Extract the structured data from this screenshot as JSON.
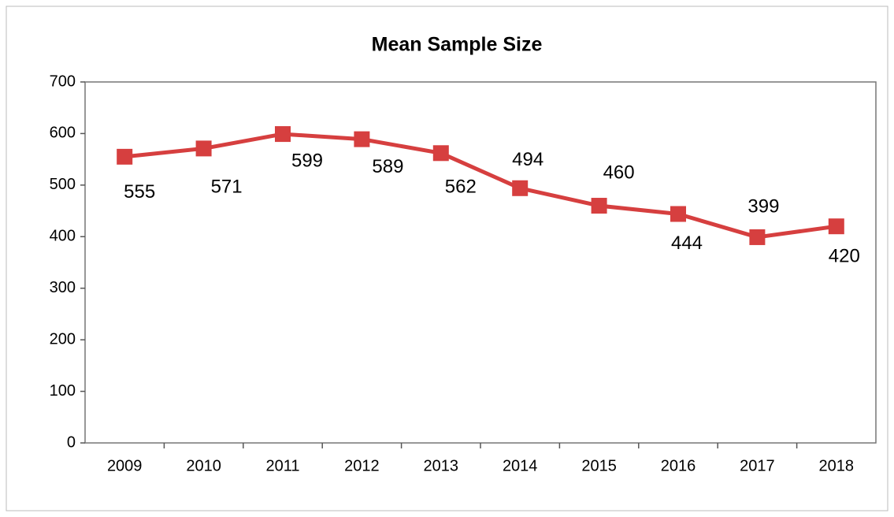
{
  "chart_data": {
    "type": "line",
    "title": "Mean Sample Size",
    "categories": [
      "2009",
      "2010",
      "2011",
      "2012",
      "2013",
      "2014",
      "2015",
      "2016",
      "2017",
      "2018"
    ],
    "values": [
      555,
      571,
      599,
      589,
      562,
      494,
      460,
      444,
      399,
      420
    ],
    "color": "#d63f3f",
    "ylim": [
      0,
      700
    ],
    "yticks": [
      0,
      100,
      200,
      300,
      400,
      500,
      600,
      700
    ],
    "grid": false
  }
}
